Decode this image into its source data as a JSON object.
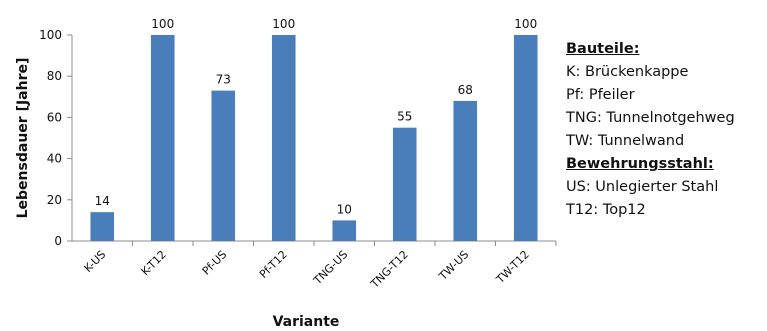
{
  "chart_data": {
    "type": "bar",
    "categories": [
      "K-US",
      "K-T12",
      "Pf-US",
      "Pf-T12",
      "TNG-US",
      "TNG-T12",
      "TW-US",
      "TW-T12"
    ],
    "values": [
      14,
      100,
      73,
      100,
      10,
      55,
      68,
      100
    ],
    "data_labels": [
      "14",
      "100",
      "73",
      "100",
      "10",
      "55",
      "68",
      "100"
    ],
    "ylabel": "Lebensdauer [Jahre]",
    "xlabel": "Variante",
    "ylim": [
      0,
      100
    ],
    "yticks": [
      0,
      20,
      40,
      60,
      80,
      100
    ],
    "bar_color": "#4a7ebb",
    "grid": false,
    "legend": {
      "placement": "right",
      "items": [
        {
          "text": "Bauteile:",
          "heading": true
        },
        {
          "text": "K: Brückenkappe",
          "heading": false
        },
        {
          "text": "Pf: Pfeiler",
          "heading": false
        },
        {
          "text": "TNG: Tunnelnotgehweg",
          "heading": false
        },
        {
          "text": "TW: Tunnelwand",
          "heading": false
        },
        {
          "text": "Bewehrungsstahl:",
          "heading": true
        },
        {
          "text": "US: Unlegierter Stahl",
          "heading": false
        },
        {
          "text": "T12: Top12",
          "heading": false
        }
      ]
    }
  }
}
